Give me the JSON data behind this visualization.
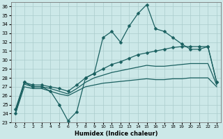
{
  "xlabel": "Humidex (Indice chaleur)",
  "x": [
    0,
    1,
    2,
    3,
    4,
    5,
    6,
    7,
    8,
    9,
    10,
    11,
    12,
    13,
    14,
    15,
    16,
    17,
    18,
    19,
    20,
    21,
    22,
    23
  ],
  "line1": [
    24.0,
    27.5,
    27.0,
    27.0,
    26.5,
    25.0,
    23.2,
    24.2,
    28.0,
    28.5,
    32.5,
    33.2,
    32.0,
    33.8,
    35.2,
    36.2,
    33.5,
    33.2,
    32.5,
    31.8,
    31.2,
    31.2,
    31.5,
    27.5
  ],
  "line2": [
    24.5,
    27.5,
    27.2,
    27.2,
    27.0,
    26.8,
    26.5,
    27.2,
    28.0,
    28.5,
    29.0,
    29.5,
    29.8,
    30.2,
    30.6,
    30.8,
    31.0,
    31.2,
    31.4,
    31.5,
    31.5,
    31.5,
    31.5,
    27.5
  ],
  "line3": [
    24.3,
    27.3,
    27.0,
    27.0,
    26.8,
    26.5,
    26.2,
    26.8,
    27.5,
    28.0,
    28.3,
    28.6,
    28.8,
    29.0,
    29.2,
    29.4,
    29.3,
    29.3,
    29.4,
    29.5,
    29.6,
    29.6,
    29.6,
    27.2
  ],
  "line4": [
    24.0,
    27.0,
    26.8,
    26.8,
    26.5,
    26.2,
    26.0,
    26.5,
    27.0,
    27.2,
    27.4,
    27.5,
    27.6,
    27.7,
    27.8,
    27.9,
    27.8,
    27.8,
    27.9,
    27.9,
    28.0,
    28.0,
    28.0,
    27.0
  ],
  "bg_color": "#cce8e8",
  "grid_color": "#aacccc",
  "line_color": "#1a6060",
  "ylim": [
    23,
    36.5
  ],
  "yticks": [
    23,
    24,
    25,
    26,
    27,
    28,
    29,
    30,
    31,
    32,
    33,
    34,
    35,
    36
  ],
  "xlim": [
    -0.5,
    23.5
  ],
  "xticks": [
    0,
    1,
    2,
    3,
    4,
    5,
    6,
    7,
    8,
    9,
    10,
    11,
    12,
    13,
    14,
    15,
    16,
    17,
    18,
    19,
    20,
    21,
    22,
    23
  ],
  "figw": 3.2,
  "figh": 2.0,
  "dpi": 100
}
